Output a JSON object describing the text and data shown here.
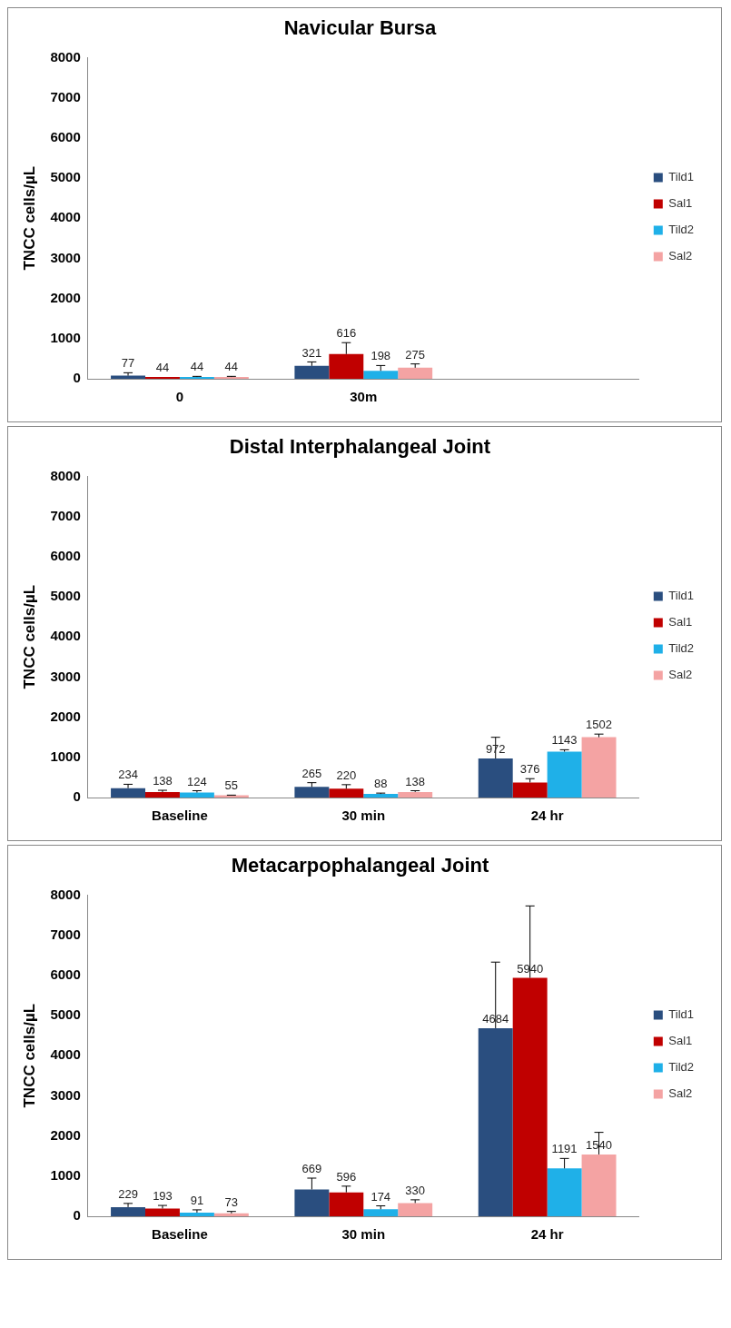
{
  "chart_data": [
    {
      "type": "bar",
      "title": "Navicular Bursa",
      "ylabel": "TNCC cells/µL",
      "categories": [
        "0",
        "30m",
        null
      ],
      "ylim": [
        0,
        8000
      ],
      "yticks": [
        0,
        1000,
        2000,
        3000,
        4000,
        5000,
        6000,
        7000,
        8000
      ],
      "grid": false,
      "legend": "right",
      "data_labels": true,
      "series": [
        {
          "name": "Tild1",
          "color": "#2a4e7f",
          "values": [
            77,
            321,
            null
          ],
          "errors": [
            [
              77,
              150
            ],
            [
              321,
              420
            ],
            null
          ]
        },
        {
          "name": "Sal1",
          "color": "#c00000",
          "values": [
            44,
            616,
            null
          ],
          "errors": [
            null,
            [
              616,
              900
            ],
            null
          ]
        },
        {
          "name": "Tild2",
          "color": "#1fb0e8",
          "values": [
            44,
            198,
            null
          ],
          "errors": [
            [
              44,
              60
            ],
            [
              198,
              330
            ],
            null
          ]
        },
        {
          "name": "Sal2",
          "color": "#f4a3a3",
          "values": [
            44,
            275,
            null
          ],
          "errors": [
            [
              44,
              60
            ],
            [
              275,
              370
            ],
            null
          ]
        }
      ]
    },
    {
      "type": "bar",
      "title": "Distal Interphalangeal Joint",
      "ylabel": "TNCC cells/µL",
      "categories": [
        "Baseline",
        "30 min",
        "24 hr"
      ],
      "ylim": [
        0,
        8000
      ],
      "yticks": [
        0,
        1000,
        2000,
        3000,
        4000,
        5000,
        6000,
        7000,
        8000
      ],
      "grid": false,
      "legend": "right",
      "data_labels": true,
      "series": [
        {
          "name": "Tild1",
          "color": "#2a4e7f",
          "values": [
            234,
            265,
            972
          ],
          "errors": [
            [
              234,
              330
            ],
            [
              265,
              370
            ],
            [
              972,
              1500
            ]
          ]
        },
        {
          "name": "Sal1",
          "color": "#c00000",
          "values": [
            138,
            220,
            376
          ],
          "errors": [
            [
              138,
              180
            ],
            [
              220,
              320
            ],
            [
              376,
              470
            ]
          ]
        },
        {
          "name": "Tild2",
          "color": "#1fb0e8",
          "values": [
            124,
            88,
            1143
          ],
          "errors": [
            [
              124,
              170
            ],
            [
              88,
              110
            ],
            [
              1143,
              1190
            ]
          ]
        },
        {
          "name": "Sal2",
          "color": "#f4a3a3",
          "values": [
            55,
            138,
            1502
          ],
          "errors": [
            [
              55,
              60
            ],
            [
              138,
              170
            ],
            [
              1502,
              1580
            ]
          ]
        }
      ]
    },
    {
      "type": "bar",
      "title": "Metacarpophalangeal Joint",
      "ylabel": "TNCC cells/µL",
      "categories": [
        "Baseline",
        "30 min",
        "24 hr"
      ],
      "ylim": [
        0,
        8000
      ],
      "yticks": [
        0,
        1000,
        2000,
        3000,
        4000,
        5000,
        6000,
        7000,
        8000
      ],
      "grid": false,
      "legend": "right",
      "data_labels": true,
      "series": [
        {
          "name": "Tild1",
          "color": "#2a4e7f",
          "values": [
            229,
            669,
            4684
          ],
          "errors": [
            [
              229,
              320
            ],
            [
              669,
              950
            ],
            [
              4684,
              6330
            ]
          ]
        },
        {
          "name": "Sal1",
          "color": "#c00000",
          "values": [
            193,
            596,
            5940
          ],
          "errors": [
            [
              193,
              270
            ],
            [
              596,
              750
            ],
            [
              5940,
              7730
            ]
          ]
        },
        {
          "name": "Tild2",
          "color": "#1fb0e8",
          "values": [
            91,
            174,
            1191
          ],
          "errors": [
            [
              91,
              160
            ],
            [
              174,
              260
            ],
            [
              1191,
              1440
            ]
          ]
        },
        {
          "name": "Sal2",
          "color": "#f4a3a3",
          "values": [
            73,
            330,
            1540
          ],
          "errors": [
            [
              73,
              120
            ],
            [
              330,
              410
            ],
            [
              1540,
              2090
            ]
          ]
        }
      ]
    }
  ]
}
